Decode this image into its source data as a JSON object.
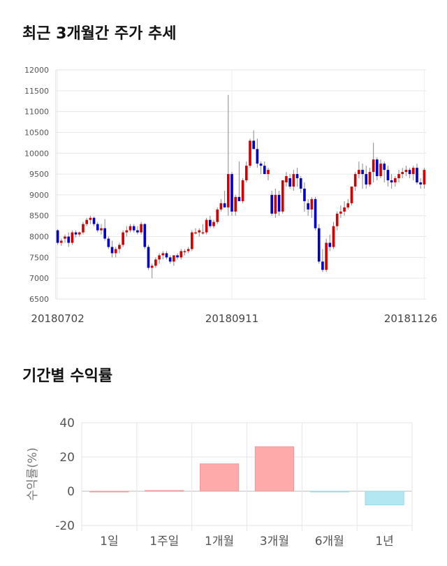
{
  "sections": {
    "price_title": "최근 3개월간 주가 추세",
    "return_title": "기간별 수익률"
  },
  "chart_data": [
    {
      "type": "candlestick",
      "title": "최근 3개월간 주가 추세",
      "ylim": [
        6500,
        12000
      ],
      "yticks": [
        6500,
        7000,
        7500,
        8000,
        8500,
        9000,
        9500,
        10000,
        10500,
        11000,
        11500,
        12000
      ],
      "xtick_labels": [
        {
          "label": "20180702",
          "index": 0
        },
        {
          "label": "20180911",
          "index": 48
        },
        {
          "label": "20181126",
          "index": 101
        }
      ],
      "grid": true,
      "colors": {
        "up": "#d40000",
        "down": "#0000cc",
        "wick": "#888888"
      },
      "candles": [
        [
          8150,
          8180,
          7800,
          7850
        ],
        [
          7850,
          7950,
          7780,
          7900
        ],
        [
          7950,
          8050,
          7850,
          8000
        ],
        [
          8000,
          8100,
          7750,
          7850
        ],
        [
          7850,
          8150,
          7800,
          8100
        ],
        [
          8100,
          8150,
          7980,
          8050
        ],
        [
          8050,
          8120,
          8000,
          8100
        ],
        [
          8100,
          8350,
          8050,
          8300
        ],
        [
          8300,
          8450,
          8250,
          8400
        ],
        [
          8400,
          8500,
          8300,
          8450
        ],
        [
          8450,
          8480,
          8250,
          8300
        ],
        [
          8300,
          8350,
          8100,
          8150
        ],
        [
          8150,
          8300,
          8050,
          8200
        ],
        [
          8200,
          8420,
          7900,
          7950
        ],
        [
          7950,
          8000,
          7700,
          7750
        ],
        [
          7750,
          7900,
          7500,
          7600
        ],
        [
          7600,
          7750,
          7500,
          7700
        ],
        [
          7700,
          7850,
          7600,
          7800
        ],
        [
          7800,
          8150,
          7750,
          8100
        ],
        [
          8100,
          8250,
          8000,
          8150
        ],
        [
          8150,
          8300,
          8100,
          8250
        ],
        [
          8250,
          8300,
          8100,
          8150
        ],
        [
          8150,
          8250,
          8050,
          8100
        ],
        [
          8100,
          8350,
          8050,
          8300
        ],
        [
          8300,
          8320,
          7700,
          7750
        ],
        [
          7750,
          7800,
          7200,
          7250
        ],
        [
          7250,
          7350,
          7000,
          7300
        ],
        [
          7300,
          7500,
          7250,
          7450
        ],
        [
          7450,
          7600,
          7350,
          7550
        ],
        [
          7550,
          7650,
          7450,
          7600
        ],
        [
          7600,
          7650,
          7450,
          7500
        ],
        [
          7500,
          7550,
          7350,
          7400
        ],
        [
          7400,
          7550,
          7300,
          7550
        ],
        [
          7550,
          7600,
          7450,
          7500
        ],
        [
          7500,
          7700,
          7450,
          7650
        ],
        [
          7650,
          7700,
          7550,
          7650
        ],
        [
          7650,
          7750,
          7600,
          7700
        ],
        [
          7700,
          8150,
          7650,
          8100
        ],
        [
          8100,
          8200,
          8050,
          8100
        ],
        [
          8100,
          8200,
          8000,
          8150
        ],
        [
          8100,
          8300,
          8050,
          8100
        ],
        [
          8100,
          8450,
          8050,
          8400
        ],
        [
          8400,
          8500,
          8200,
          8250
        ],
        [
          8250,
          8400,
          8200,
          8350
        ],
        [
          8350,
          8700,
          8300,
          8650
        ],
        [
          8650,
          8900,
          8600,
          8800
        ],
        [
          8800,
          9100,
          8700,
          8700
        ],
        [
          8700,
          11400,
          8500,
          9500
        ],
        [
          9500,
          9550,
          8500,
          8600
        ],
        [
          8600,
          9000,
          8500,
          8950
        ],
        [
          8950,
          9800,
          8850,
          8850
        ],
        [
          8850,
          9400,
          8800,
          9350
        ],
        [
          9350,
          9800,
          9300,
          9700
        ],
        [
          9700,
          10350,
          9650,
          10300
        ],
        [
          10300,
          10550,
          10100,
          10100
        ],
        [
          10100,
          10350,
          9650,
          9750
        ],
        [
          9750,
          9800,
          9500,
          9700
        ],
        [
          9700,
          9800,
          9500,
          9500
        ],
        [
          9500,
          9650,
          9350,
          9600
        ],
        [
          9000,
          9100,
          8500,
          8550
        ],
        [
          8550,
          9150,
          8450,
          9000
        ],
        [
          9000,
          9100,
          8500,
          8600
        ],
        [
          8600,
          9350,
          8550,
          9350
        ],
        [
          9300,
          9550,
          9200,
          9450
        ],
        [
          9400,
          9500,
          9150,
          9200
        ],
        [
          9200,
          9600,
          9100,
          9500
        ],
        [
          9500,
          9650,
          9200,
          9400
        ],
        [
          9400,
          9450,
          9050,
          9150
        ],
        [
          9150,
          9300,
          8600,
          8850
        ],
        [
          8800,
          8900,
          8500,
          8650
        ],
        [
          8650,
          8950,
          8450,
          8900
        ],
        [
          8900,
          8950,
          8150,
          8200
        ],
        [
          8200,
          8300,
          7350,
          7400
        ],
        [
          7400,
          7700,
          7150,
          7200
        ],
        [
          7200,
          7950,
          7150,
          7850
        ],
        [
          7850,
          8050,
          7650,
          7750
        ],
        [
          7750,
          8350,
          7700,
          8250
        ],
        [
          8250,
          8600,
          8150,
          8550
        ],
        [
          8550,
          8750,
          8450,
          8600
        ],
        [
          8600,
          8850,
          8500,
          8700
        ],
        [
          8700,
          8900,
          8650,
          8800
        ],
        [
          8800,
          9200,
          8750,
          9200
        ],
        [
          9200,
          9550,
          9100,
          9500
        ],
        [
          9500,
          9800,
          9400,
          9600
        ],
        [
          9600,
          9750,
          9150,
          9500
        ],
        [
          9500,
          9700,
          9150,
          9250
        ],
        [
          9250,
          9650,
          9200,
          9550
        ],
        [
          9550,
          10250,
          9300,
          9850
        ],
        [
          9850,
          9900,
          9350,
          9450
        ],
        [
          9450,
          9850,
          9400,
          9750
        ],
        [
          9750,
          9800,
          9300,
          9600
        ],
        [
          9600,
          9700,
          9200,
          9350
        ],
        [
          9350,
          9500,
          9150,
          9300
        ],
        [
          9300,
          9450,
          9200,
          9400
        ],
        [
          9400,
          9600,
          9300,
          9500
        ],
        [
          9500,
          9650,
          9400,
          9550
        ],
        [
          9550,
          9700,
          9450,
          9600
        ],
        [
          9600,
          9650,
          9400,
          9500
        ],
        [
          9500,
          9700,
          9350,
          9650
        ],
        [
          9650,
          9750,
          9250,
          9300
        ],
        [
          9300,
          9400,
          9150,
          9250
        ],
        [
          9250,
          9650,
          9150,
          9600
        ]
      ]
    },
    {
      "type": "bar",
      "title": "기간별 수익률",
      "ylabel": "수익률(%)",
      "ylim": [
        -20,
        40
      ],
      "yticks": [
        -20,
        0,
        20,
        40
      ],
      "categories": [
        "1일",
        "1주일",
        "1개월",
        "3개월",
        "6개월",
        "1년"
      ],
      "values": [
        0,
        0.4,
        16,
        26,
        -0.3,
        -8
      ],
      "grid": true,
      "colors": {
        "positive": "#ffaaaa",
        "positive_edge": "#ee9999",
        "negative": "#b3e8f2",
        "negative_edge": "#99d8e6"
      }
    }
  ]
}
